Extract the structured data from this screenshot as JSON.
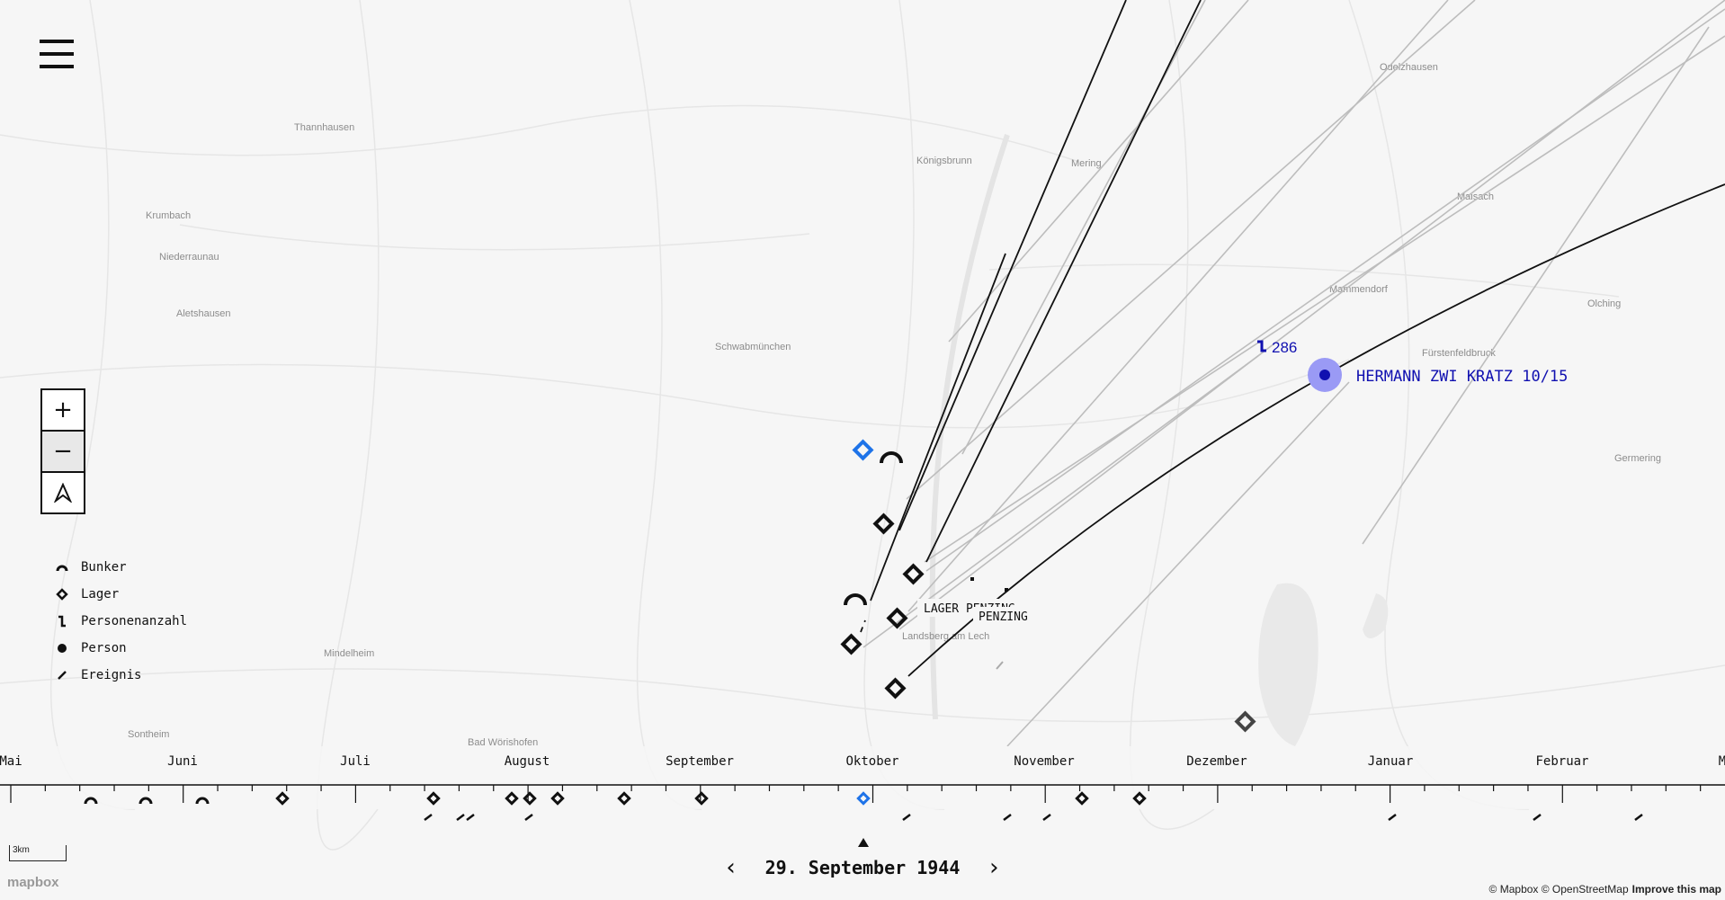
{
  "places": [
    "Thannhausen",
    "Krumbach",
    "Niederraunau",
    "Aletshausen",
    "Mindelheim",
    "Sontheim",
    "Bad Wörishofen",
    "Königsbrunn",
    "Mering",
    "Schwabmünchen",
    "Odelzhausen",
    "Maisach",
    "Mammendorf",
    "Fürstenfeldbruck",
    "Olching",
    "Germering",
    "Landsberg am Lech"
  ],
  "map_labels": {
    "lager": "LAGER PENZING",
    "penzing": "PENZING",
    "count": "286",
    "person": "HERMANN ZWI KRATZ 10/15"
  },
  "legend": [
    {
      "icon": "bunker-icon",
      "label": "Bunker"
    },
    {
      "icon": "lager-icon",
      "label": "Lager"
    },
    {
      "icon": "personenanzahl-icon",
      "label": "Personenanzahl"
    },
    {
      "icon": "person-icon",
      "label": "Person"
    },
    {
      "icon": "ereignis-icon",
      "label": "Ereignis"
    }
  ],
  "zoom": {
    "in": "+",
    "out": "−"
  },
  "timeline": {
    "months": [
      "Mai",
      "Juni",
      "Juli",
      "August",
      "September",
      "Oktober",
      "November",
      "Dezember",
      "Januar",
      "Februar",
      "M"
    ],
    "current_date": "29. September 1944",
    "prev": "‹",
    "next": "›"
  },
  "scale": "3km",
  "logo": "mapbox",
  "attribution": {
    "copyright": "© Mapbox © OpenStreetMap",
    "improve": "Improve this map"
  },
  "colors": {
    "highlight": "#1e73e8",
    "person": "#1010b0",
    "person_halo": "#9a9af5",
    "line": "#111111",
    "line_light": "#bbbbbb"
  }
}
